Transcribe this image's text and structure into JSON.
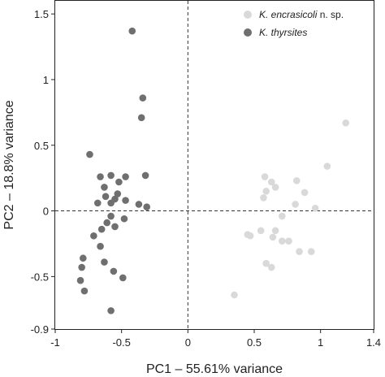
{
  "chart_data": {
    "type": "scatter",
    "xlabel": "PC1 – 55.61% variance",
    "ylabel": "PC2 – 18.8% variance",
    "xlim": [
      -1,
      1.4
    ],
    "ylim": [
      -0.9,
      1.6
    ],
    "xticks": [
      -1,
      -0.5,
      0,
      0.5,
      1,
      1.4
    ],
    "xtick_labels": [
      "-1",
      "-0.5",
      "0",
      "0.5",
      "1",
      "1.4"
    ],
    "yticks": [
      -0.9,
      -0.5,
      0,
      0.5,
      1,
      1.5
    ],
    "ytick_labels": [
      "-0.9",
      "-0.5",
      "0",
      "0.5",
      "1",
      "1.5"
    ],
    "reference_lines": {
      "x": 0,
      "y": 0,
      "style": "dashed"
    },
    "legend_position": "top-right",
    "series": [
      {
        "name_italic": "K. encrasicoli",
        "name_suffix": " n. sp.",
        "color": "#d9d9d9",
        "points": [
          [
            1.19,
            0.67
          ],
          [
            1.05,
            0.34
          ],
          [
            0.58,
            0.26
          ],
          [
            0.82,
            0.23
          ],
          [
            0.63,
            0.22
          ],
          [
            0.66,
            0.18
          ],
          [
            0.59,
            0.15
          ],
          [
            0.88,
            0.14
          ],
          [
            0.57,
            0.1
          ],
          [
            0.81,
            0.05
          ],
          [
            0.96,
            0.02
          ],
          [
            0.71,
            -0.04
          ],
          [
            0.45,
            -0.18
          ],
          [
            0.47,
            -0.19
          ],
          [
            0.55,
            -0.15
          ],
          [
            0.66,
            -0.15
          ],
          [
            0.64,
            -0.2
          ],
          [
            0.71,
            -0.23
          ],
          [
            0.76,
            -0.23
          ],
          [
            0.93,
            -0.31
          ],
          [
            0.84,
            -0.31
          ],
          [
            0.59,
            -0.4
          ],
          [
            0.63,
            -0.43
          ],
          [
            0.35,
            -0.64
          ]
        ]
      },
      {
        "name_italic": "K. thyrsites",
        "name_suffix": "",
        "color": "#6f6f6f",
        "points": [
          [
            -0.42,
            1.37
          ],
          [
            -0.34,
            0.86
          ],
          [
            -0.35,
            0.71
          ],
          [
            -0.74,
            0.43
          ],
          [
            -0.32,
            0.27
          ],
          [
            -0.66,
            0.26
          ],
          [
            -0.58,
            0.27
          ],
          [
            -0.47,
            0.26
          ],
          [
            -0.52,
            0.22
          ],
          [
            -0.63,
            0.18
          ],
          [
            -0.53,
            0.13
          ],
          [
            -0.62,
            0.11
          ],
          [
            -0.55,
            0.09
          ],
          [
            -0.47,
            0.08
          ],
          [
            -0.58,
            0.06
          ],
          [
            -0.31,
            0.03
          ],
          [
            -0.37,
            0.05
          ],
          [
            -0.68,
            0.06
          ],
          [
            -0.58,
            -0.04
          ],
          [
            -0.48,
            -0.06
          ],
          [
            -0.61,
            -0.09
          ],
          [
            -0.55,
            -0.12
          ],
          [
            -0.65,
            -0.14
          ],
          [
            -0.71,
            -0.19
          ],
          [
            -0.66,
            -0.27
          ],
          [
            -0.79,
            -0.36
          ],
          [
            -0.8,
            -0.43
          ],
          [
            -0.63,
            -0.39
          ],
          [
            -0.56,
            -0.46
          ],
          [
            -0.49,
            -0.51
          ],
          [
            -0.81,
            -0.53
          ],
          [
            -0.78,
            -0.61
          ],
          [
            -0.58,
            -0.76
          ]
        ]
      }
    ]
  }
}
